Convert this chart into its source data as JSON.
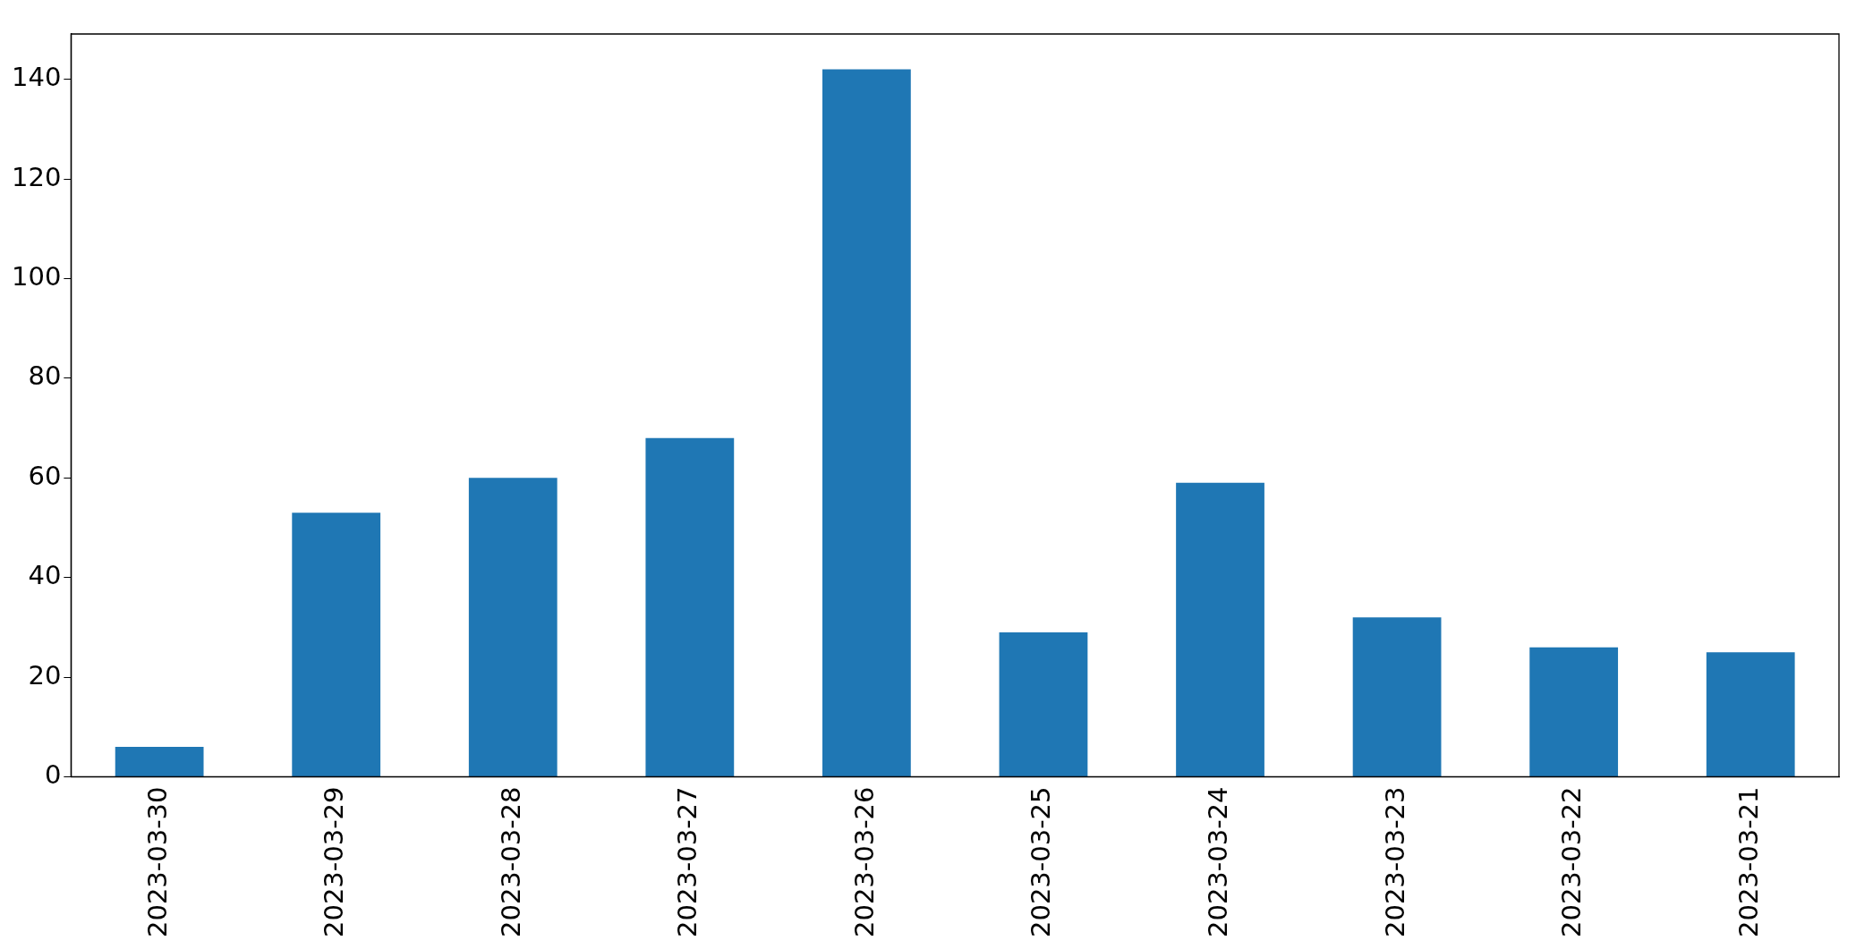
{
  "chart_data": {
    "type": "bar",
    "categories": [
      "2023-03-30",
      "2023-03-29",
      "2023-03-28",
      "2023-03-27",
      "2023-03-26",
      "2023-03-25",
      "2023-03-24",
      "2023-03-23",
      "2023-03-22",
      "2023-03-21"
    ],
    "values": [
      6,
      53,
      60,
      68,
      142,
      29,
      59,
      32,
      26,
      25
    ],
    "color": "#1f77b4",
    "ylim": [
      0,
      149.1
    ],
    "yticks": [
      0,
      20,
      40,
      60,
      80,
      100,
      120,
      140
    ],
    "grid": false,
    "legend": false
  }
}
